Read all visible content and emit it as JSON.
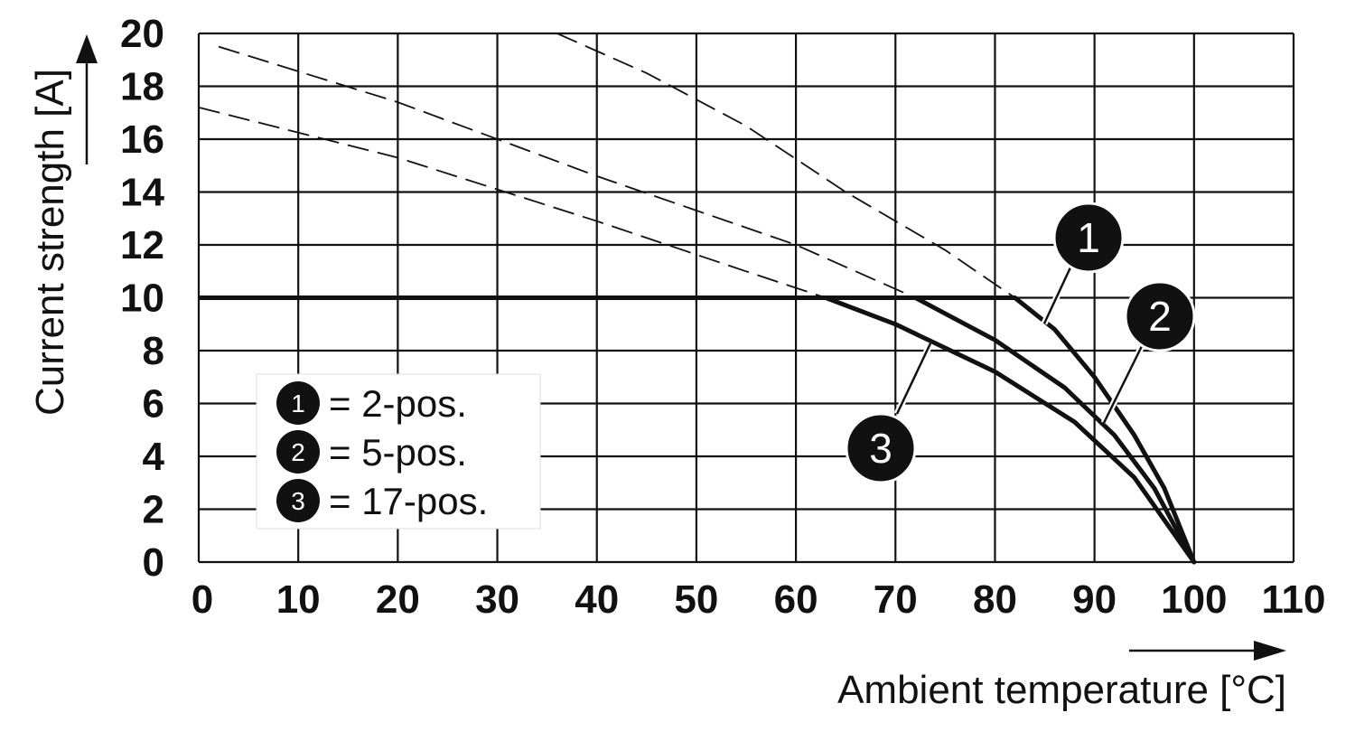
{
  "chart_data": {
    "type": "line",
    "xlabel": "Ambient temperature [°C]",
    "ylabel": "Current strength [A]",
    "xlim": [
      0,
      110
    ],
    "ylim": [
      0,
      20
    ],
    "x_ticks": [
      "0",
      "10",
      "20",
      "30",
      "40",
      "50",
      "60",
      "70",
      "80",
      "90",
      "100",
      "110"
    ],
    "y_ticks": [
      "0",
      "2",
      "4",
      "6",
      "8",
      "10",
      "12",
      "14",
      "16",
      "18",
      "20"
    ],
    "grid": true,
    "current_limit": 10,
    "series": [
      {
        "name": "2-pos.",
        "marker": "1",
        "derating_solid": [
          [
            0,
            10
          ],
          [
            82,
            10
          ],
          [
            86,
            8.8
          ],
          [
            90,
            7
          ],
          [
            94,
            4.8
          ],
          [
            97,
            2.8
          ],
          [
            100,
            0
          ]
        ],
        "dashed": [
          [
            36,
            20
          ],
          [
            45,
            18.5
          ],
          [
            55,
            16.5
          ],
          [
            65,
            14
          ],
          [
            75,
            11.8
          ],
          [
            82,
            10
          ]
        ]
      },
      {
        "name": "5-pos.",
        "marker": "2",
        "derating_solid": [
          [
            0,
            10
          ],
          [
            72,
            10
          ],
          [
            80,
            8.4
          ],
          [
            87,
            6.6
          ],
          [
            92,
            4.8
          ],
          [
            96,
            2.8
          ],
          [
            100,
            0
          ]
        ],
        "dashed": [
          [
            2,
            19.5
          ],
          [
            20,
            17.4
          ],
          [
            40,
            14.6
          ],
          [
            60,
            12
          ],
          [
            72,
            10
          ]
        ]
      },
      {
        "name": "17-pos.",
        "marker": "3",
        "derating_solid": [
          [
            0,
            10
          ],
          [
            63,
            10
          ],
          [
            70,
            9
          ],
          [
            80,
            7.2
          ],
          [
            88,
            5.3
          ],
          [
            94,
            3.2
          ],
          [
            100,
            0
          ]
        ],
        "dashed": [
          [
            0,
            17.2
          ],
          [
            20,
            15.3
          ],
          [
            40,
            12.9
          ],
          [
            55,
            11
          ],
          [
            63,
            10
          ]
        ]
      }
    ],
    "legend": [
      {
        "marker": "1",
        "text": "= 2-pos."
      },
      {
        "marker": "2",
        "text": "= 5-pos."
      },
      {
        "marker": "3",
        "text": "= 17-pos."
      }
    ],
    "legend_position": "bottom-left",
    "colors": {
      "line": "#111111",
      "grid": "#111111",
      "badge": "#111111",
      "background": "#ffffff"
    }
  }
}
